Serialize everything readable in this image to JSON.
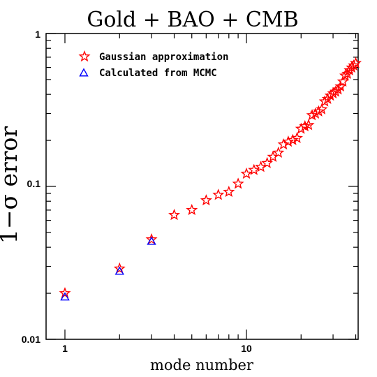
{
  "chart_data": {
    "type": "scatter",
    "title": "Gold + BAO + CMB",
    "xlabel": "mode number",
    "ylabel": "1−σ error",
    "xscale": "log",
    "yscale": "log",
    "xlim": [
      0.8,
      40
    ],
    "ylim": [
      0.01,
      1
    ],
    "x_tick_labels": [
      "1",
      "10"
    ],
    "y_tick_labels": [
      "0.01",
      "0.1",
      "1"
    ],
    "legend_position": "top-left",
    "grid": false,
    "series": [
      {
        "name": "Gaussian approximation",
        "marker": "star",
        "color": "#ff0000",
        "x": [
          1,
          2,
          3,
          4,
          5,
          6,
          7,
          8,
          9,
          10,
          11,
          12,
          13,
          14,
          15,
          16,
          17,
          18,
          19,
          20,
          21,
          22,
          23,
          24,
          25,
          26,
          27,
          28,
          29,
          30,
          31,
          32,
          33,
          34,
          35,
          36,
          37,
          38,
          39,
          40
        ],
        "y": [
          0.02,
          0.029,
          0.045,
          0.065,
          0.07,
          0.081,
          0.088,
          0.092,
          0.104,
          0.121,
          0.128,
          0.134,
          0.142,
          0.156,
          0.166,
          0.188,
          0.196,
          0.201,
          0.207,
          0.238,
          0.247,
          0.252,
          0.292,
          0.299,
          0.309,
          0.319,
          0.359,
          0.373,
          0.392,
          0.406,
          0.416,
          0.43,
          0.45,
          0.485,
          0.53,
          0.545,
          0.574,
          0.598,
          0.617,
          0.64
        ]
      },
      {
        "name": "Calculated from MCMC",
        "marker": "triangle",
        "color": "#0000ff",
        "x": [
          1,
          2,
          3
        ],
        "y": [
          0.0188,
          0.0277,
          0.0435
        ]
      }
    ]
  }
}
